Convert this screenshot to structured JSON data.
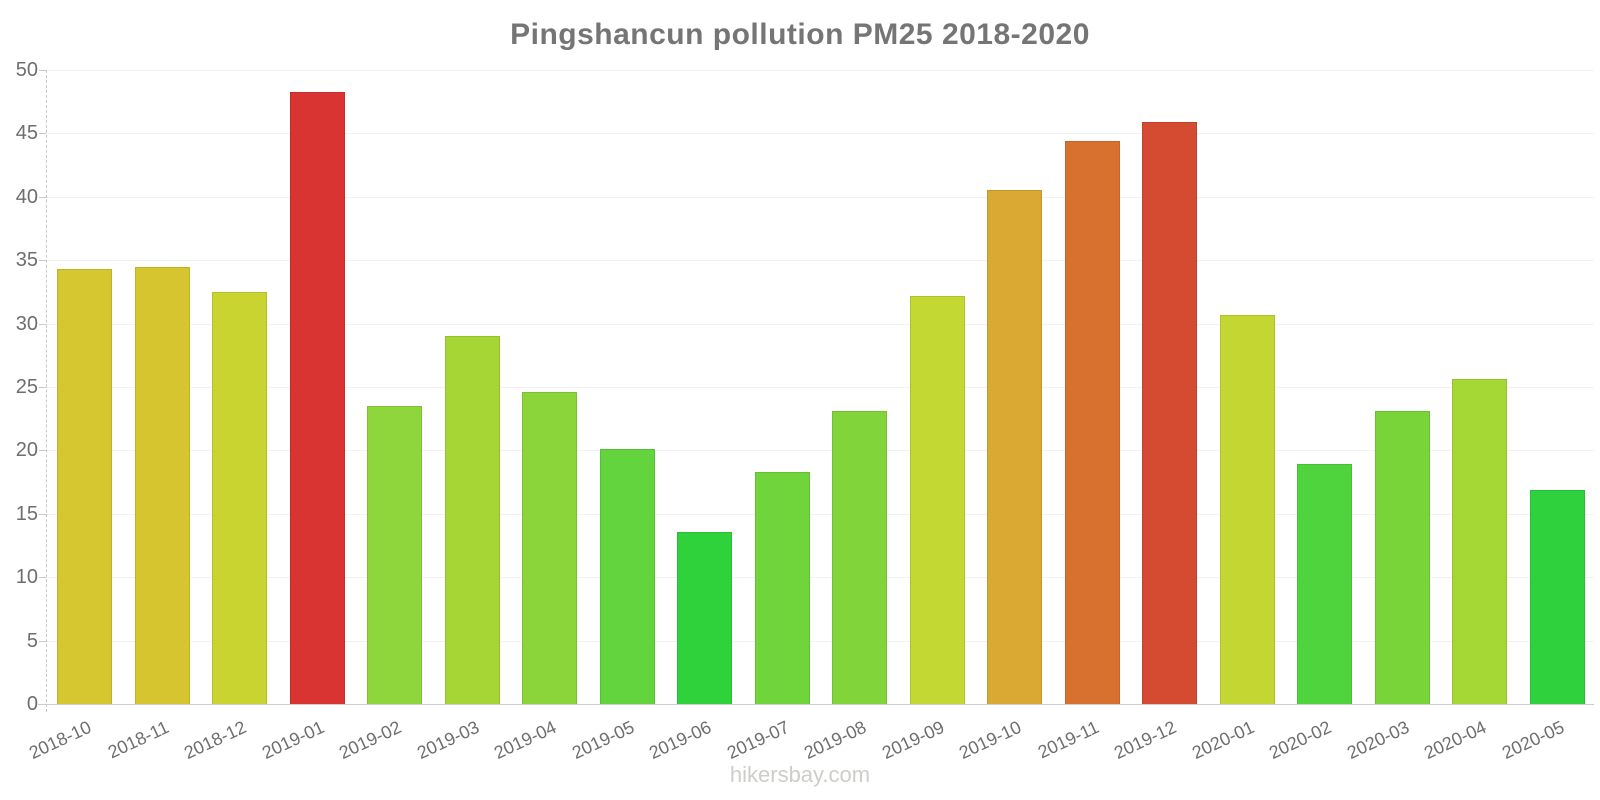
{
  "title": "Pingshancun pollution PM25 2018-2020",
  "watermark": "hikersbay.com",
  "colors": {
    "title_text": "#757575",
    "axis_label_text": "#6e6e6e",
    "watermark_text": "#cdcdc9",
    "gridline": "#f2f2f6",
    "axis_line": "#cccccc"
  },
  "chart_data": {
    "type": "bar",
    "title": "Pingshancun pollution PM25 2018-2020",
    "xlabel": "",
    "ylabel": "",
    "ylim": [
      0,
      50
    ],
    "yticks": [
      0,
      5,
      10,
      15,
      20,
      25,
      30,
      35,
      40,
      45,
      50
    ],
    "grid": true,
    "legend": false,
    "categories": [
      "2018-10",
      "2018-11",
      "2018-12",
      "2019-01",
      "2019-02",
      "2019-03",
      "2019-04",
      "2019-05",
      "2019-06",
      "2019-07",
      "2019-08",
      "2019-09",
      "2019-10",
      "2019-11",
      "2019-12",
      "2020-01",
      "2020-02",
      "2020-03",
      "2020-04",
      "2020-05"
    ],
    "values": [
      34.3,
      34.5,
      32.5,
      48.3,
      23.5,
      29.0,
      24.6,
      20.1,
      13.6,
      18.3,
      23.1,
      32.2,
      40.5,
      44.4,
      45.9,
      30.7,
      18.9,
      23.1,
      25.6,
      16.9
    ],
    "bar_colors": [
      "#d6c62f",
      "#d6c52f",
      "#c9d431",
      "#d93431",
      "#8ed63b",
      "#a6d636",
      "#8bd53b",
      "#63d43e",
      "#2fd23b",
      "#70d53a",
      "#82d43b",
      "#c3d833",
      "#d9a934",
      "#d8702f",
      "#d54b31",
      "#c4d632",
      "#4fd43d",
      "#79d43a",
      "#a5d735",
      "#2fd23c"
    ]
  }
}
